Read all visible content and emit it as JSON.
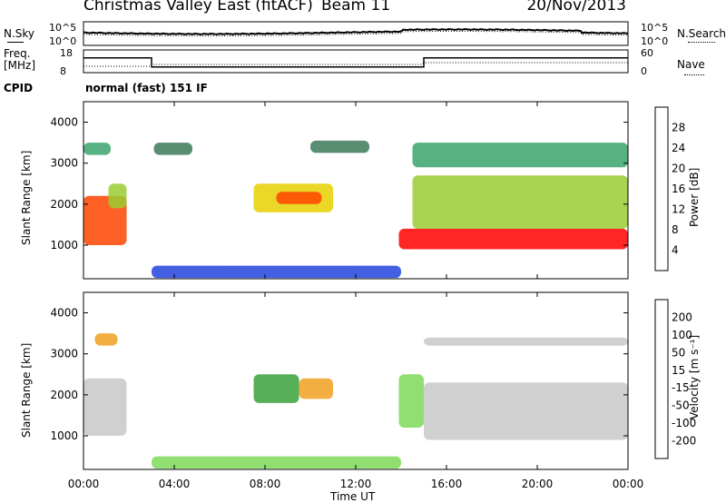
{
  "header": {
    "title": "Christmas Valley East (fitACF)",
    "beam": "Beam 11",
    "date": "20/Nov/2013"
  },
  "panel_labels": {
    "nsky": "N.Sky",
    "nsearch": "N.Search",
    "freq": "Freq.",
    "freq_unit": "[MHz]",
    "nave": "Nave",
    "cpid": "CPID",
    "cpid_value": "normal (fast) 151 IF"
  },
  "colors": {
    "power_scale": [
      "#0000ff",
      "#2244dd",
      "#3d7a5a",
      "#3aa36a",
      "#9acd32",
      "#e8d000",
      "#ff8c00",
      "#ff4400",
      "#ff0000"
    ],
    "velocity_scale": [
      "#1f3aa8",
      "#2e6b3a",
      "#3aa13a",
      "#7ed957",
      "#c8c8c8",
      "#c8c8c8",
      "#f0a020",
      "#ff7000",
      "#ff3000",
      "#ff0000"
    ]
  },
  "chart_data": [
    {
      "type": "line",
      "name": "noise",
      "series": [
        {
          "name": "N.Sky"
        },
        {
          "name": "N.Search"
        }
      ],
      "ytick_labels": [
        "10^5",
        "10^0"
      ],
      "ytick_labels_right": [
        "10^5",
        "10^0"
      ]
    },
    {
      "type": "line",
      "name": "frequency",
      "series": [
        {
          "name": "Freq.",
          "x": [
            0,
            3,
            3,
            15,
            15,
            24
          ],
          "values": [
            14.5,
            14.5,
            10.5,
            10.5,
            14.5,
            14.5
          ]
        },
        {
          "name": "Nave"
        }
      ],
      "ytick_labels": [
        "18",
        "8"
      ],
      "ytick_labels_right": [
        "60",
        "0"
      ]
    },
    {
      "type": "heatmap",
      "name": "power",
      "ylabel": "Slant Range [km]",
      "yticks": [
        "1000",
        "2000",
        "3000",
        "4000"
      ],
      "ylim": [
        180,
        4500
      ],
      "colorbar_label": "Power [dB]",
      "colorbar_ticks": [
        "28",
        "24",
        "20",
        "16",
        "12",
        "8",
        "4"
      ],
      "regions": [
        {
          "t0": 0.0,
          "t1": 1.9,
          "r0": 1000,
          "r1": 2200,
          "level": 7
        },
        {
          "t0": 1.1,
          "t1": 1.9,
          "r0": 1900,
          "r1": 2500,
          "level": 4
        },
        {
          "t0": 0.0,
          "t1": 1.2,
          "r0": 3200,
          "r1": 3500,
          "level": 3
        },
        {
          "t0": 3.1,
          "t1": 4.8,
          "r0": 3200,
          "r1": 3500,
          "level": 2
        },
        {
          "t0": 7.5,
          "t1": 11.0,
          "r0": 1800,
          "r1": 2500,
          "level": 5
        },
        {
          "t0": 8.5,
          "t1": 10.5,
          "r0": 2000,
          "r1": 2300,
          "level": 7
        },
        {
          "t0": 10.0,
          "t1": 12.6,
          "r0": 3250,
          "r1": 3550,
          "level": 2
        },
        {
          "t0": 13.9,
          "t1": 24.0,
          "r0": 900,
          "r1": 1400,
          "level": 8
        },
        {
          "t0": 14.5,
          "t1": 24.0,
          "r0": 1400,
          "r1": 2700,
          "level": 4
        },
        {
          "t0": 14.5,
          "t1": 24.0,
          "r0": 2900,
          "r1": 3500,
          "level": 3
        },
        {
          "t0": 3.0,
          "t1": 14.0,
          "r0": 200,
          "r1": 500,
          "level": 1
        }
      ]
    },
    {
      "type": "heatmap",
      "name": "velocity",
      "ylabel": "Slant Range [km]",
      "xlabel": "Time UT",
      "xticks": [
        "00:00",
        "04:00",
        "08:00",
        "12:00",
        "16:00",
        "20:00",
        "00:00"
      ],
      "xlim": [
        0,
        24
      ],
      "yticks": [
        "1000",
        "2000",
        "3000",
        "4000"
      ],
      "ylim": [
        180,
        4500
      ],
      "colorbar_label": "Velocity [m s⁻¹]",
      "colorbar_ticks": [
        "200",
        "100",
        "50",
        "15",
        "-15",
        "-50",
        "-100",
        "-200"
      ],
      "regions": [
        {
          "t0": 0.0,
          "t1": 1.9,
          "r0": 1000,
          "r1": 2400,
          "level": 4
        },
        {
          "t0": 7.5,
          "t1": 9.5,
          "r0": 1800,
          "r1": 2500,
          "level": 2
        },
        {
          "t0": 9.5,
          "t1": 11.0,
          "r0": 1900,
          "r1": 2400,
          "level": 6
        },
        {
          "t0": 13.9,
          "t1": 15.0,
          "r0": 1200,
          "r1": 2500,
          "level": 3
        },
        {
          "t0": 15.0,
          "t1": 24.0,
          "r0": 900,
          "r1": 2300,
          "level": 4
        },
        {
          "t0": 0.5,
          "t1": 1.5,
          "r0": 3200,
          "r1": 3500,
          "level": 6
        },
        {
          "t0": 3.0,
          "t1": 14.0,
          "r0": 200,
          "r1": 500,
          "level": 3
        },
        {
          "t0": 15.0,
          "t1": 24.0,
          "r0": 3200,
          "r1": 3400,
          "level": 4
        }
      ]
    }
  ]
}
